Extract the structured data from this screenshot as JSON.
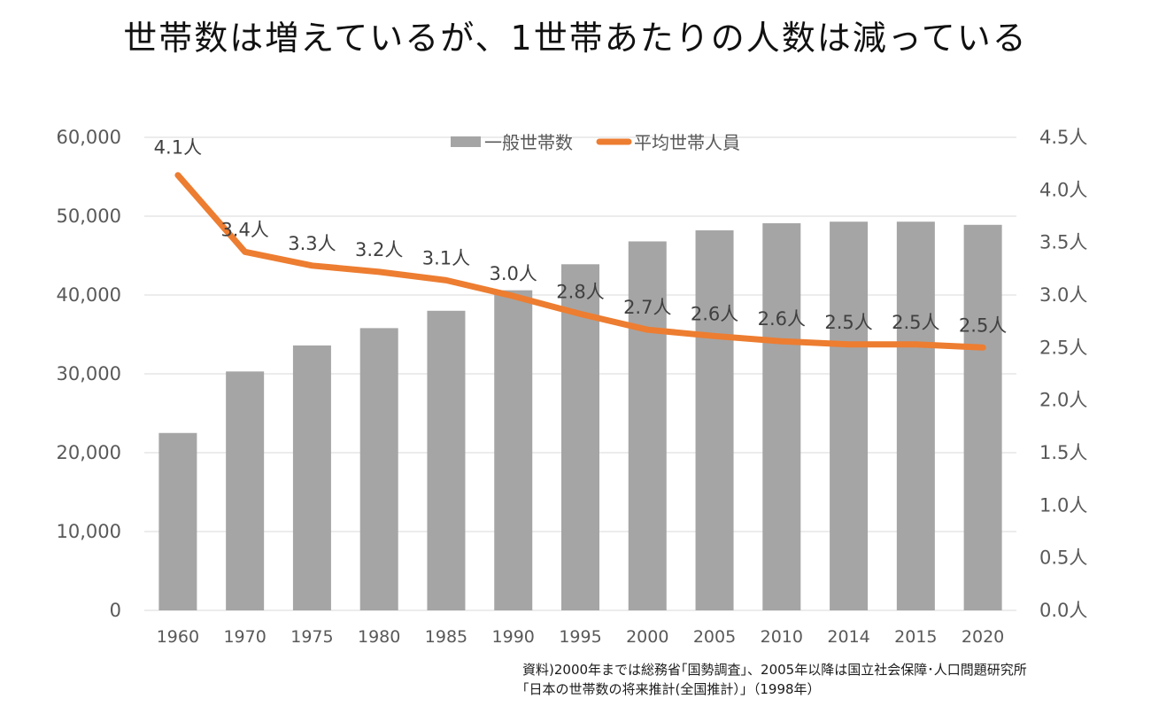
{
  "title": "世帯数は増えているが、1世帯あたりの人数は減っている",
  "source_lines": [
    "資料)2000年までは総務省｢国勢調査｣、2005年以降は国立社会保障･人口問題研究所",
    "｢日本の世帯数の将来推計(全国推計）｣（1998年）"
  ],
  "colors": {
    "bar": "#a5a5a5",
    "line": "#ed7d31",
    "grid": "#d9d9d9",
    "axis_text": "#595959"
  },
  "chart_data": {
    "type": "bar+line",
    "categories": [
      "1960",
      "1970",
      "1975",
      "1980",
      "1985",
      "1990",
      "1995",
      "2000",
      "2005",
      "2010",
      "2014",
      "2015",
      "2020"
    ],
    "series": [
      {
        "name": "一般世帯数",
        "type": "bar",
        "axis": "left",
        "values": [
          22500,
          30300,
          33600,
          35800,
          38000,
          40600,
          43900,
          46800,
          48200,
          49100,
          49300,
          49300,
          48900
        ]
      },
      {
        "name": "平均世帯人員",
        "type": "line",
        "axis": "right",
        "values": [
          4.14,
          3.41,
          3.28,
          3.22,
          3.14,
          2.99,
          2.82,
          2.67,
          2.61,
          2.56,
          2.53,
          2.53,
          2.5
        ],
        "labels": [
          "4.1人",
          "3.4人",
          "3.3人",
          "3.2人",
          "3.1人",
          "3.0人",
          "2.8人",
          "2.7人",
          "2.6人",
          "2.6人",
          "2.5人",
          "2.5人",
          "2.5人"
        ]
      }
    ],
    "y_left": {
      "min": 0,
      "max": 60000,
      "ticks": [
        "0",
        "10,000",
        "20,000",
        "30,000",
        "40,000",
        "50,000",
        "60,000"
      ],
      "tick_values": [
        0,
        10000,
        20000,
        30000,
        40000,
        50000,
        60000
      ]
    },
    "y_right": {
      "min": 0,
      "max": 4.5,
      "ticks": [
        "0.0人",
        "0.5人",
        "1.0人",
        "1.5人",
        "2.0人",
        "2.5人",
        "3.0人",
        "3.5人",
        "4.0人",
        "4.5人"
      ],
      "tick_values": [
        0,
        0.5,
        1.0,
        1.5,
        2.0,
        2.5,
        3.0,
        3.5,
        4.0,
        4.5
      ]
    },
    "grid": true,
    "legend_position": "top"
  }
}
